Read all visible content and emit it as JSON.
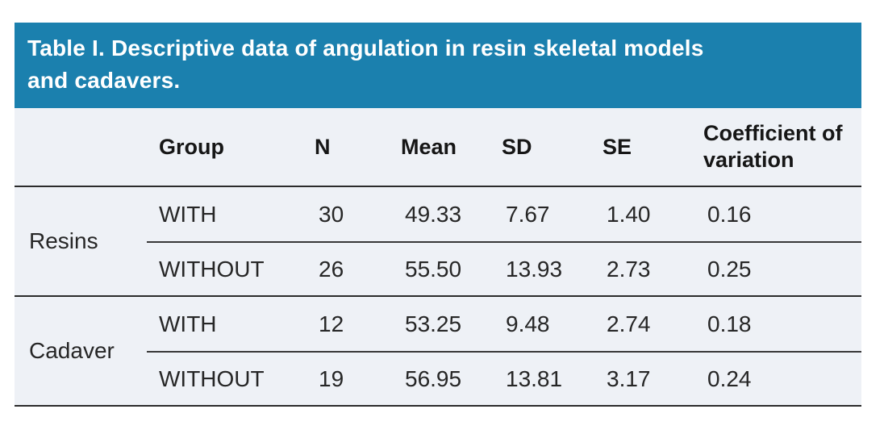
{
  "table": {
    "title": "Table I. Descriptive data of angulation in resin skeletal models and cadavers.",
    "columns": {
      "group": "Group",
      "n": "N",
      "mean": "Mean",
      "sd": "SD",
      "se": "SE",
      "cv": "Coefficient of variation"
    },
    "sections": [
      {
        "label": "Resins",
        "rows": [
          {
            "group": "WITH",
            "n": "30",
            "mean": "49.33",
            "sd": "7.67",
            "se": "1.40",
            "cv": "0.16"
          },
          {
            "group": "WITHOUT",
            "n": "26",
            "mean": "55.50",
            "sd": "13.93",
            "se": "2.73",
            "cv": "0.25"
          }
        ]
      },
      {
        "label": "Cadaver",
        "rows": [
          {
            "group": "WITH",
            "n": "12",
            "mean": "53.25",
            "sd": "9.48",
            "se": "2.74",
            "cv": "0.18"
          },
          {
            "group": "WITHOUT",
            "n": "19",
            "mean": "56.95",
            "sd": "13.81",
            "se": "3.17",
            "cv": "0.24"
          }
        ]
      }
    ]
  },
  "colors": {
    "header_bg": "#1b80ae",
    "body_bg": "#eef1f6",
    "title_color": "#ffffff",
    "text_color": "#262626",
    "line_color": "#2b2b2b"
  }
}
